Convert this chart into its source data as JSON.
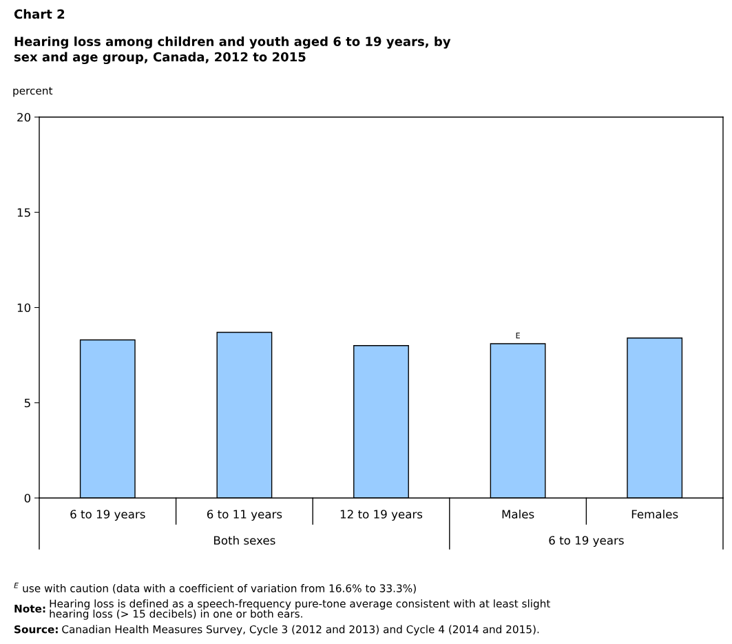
{
  "chart_data": {
    "type": "bar",
    "title": "Chart 2",
    "subtitle": "Hearing loss among children and youth aged 6 to 19 years, by\nsex and age group, Canada, 2012 to 2015",
    "ylabel": "percent",
    "categories": [
      "6 to 19 years",
      "6 to 11 years",
      "12 to 19 years",
      "Males",
      "Females"
    ],
    "values": [
      8.3,
      8.7,
      8.0,
      8.1,
      8.4
    ],
    "color": "#99ccff",
    "value_labels": [
      null,
      null,
      null,
      "E",
      null
    ],
    "ylim": [
      0,
      20
    ],
    "yticks": [
      0,
      5,
      10,
      15,
      20
    ],
    "grid": false,
    "legend": false,
    "annotations": [
      "Both sexes",
      "6 to 19 years",
      "$^{E}$ use with caution (data with a coefficient of variation from 16.6% to 33.3%)",
      "Note: Hearing loss is defined as a speech-frequency pure-tone average consistent with at least slight\nhearing loss (> 15 decibels) in one or both ears.",
      "Source: Canadian Health Measures Survey, Cycle 3 (2012 and 2013) and Cycle 4 (2014 and 2015)."
    ]
  }
}
